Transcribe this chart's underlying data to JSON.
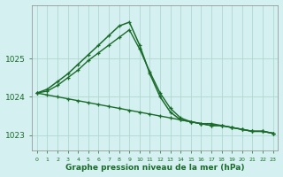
{
  "title": "Graphe pression niveau de la mer (hPa)",
  "background_color": "#d4f0f0",
  "grid_color": "#b0d8d0",
  "line_color": "#1a6b2a",
  "x_labels": [
    "0",
    "1",
    "2",
    "3",
    "4",
    "5",
    "6",
    "7",
    "8",
    "9",
    "10",
    "11",
    "12",
    "13",
    "14",
    "15",
    "16",
    "17",
    "18",
    "19",
    "20",
    "21",
    "22",
    "23"
  ],
  "ylim": [
    1022.6,
    1026.4
  ],
  "yticks": [
    1023,
    1024,
    1025
  ],
  "series": [
    [
      1024.1,
      1024.05,
      1024.0,
      1023.95,
      1023.9,
      1023.85,
      1023.8,
      1023.75,
      1023.7,
      1023.65,
      1023.6,
      1023.55,
      1023.5,
      1023.45,
      1023.4,
      1023.35,
      1023.3,
      1023.25,
      1023.25,
      1023.2,
      1023.15,
      1023.1,
      1023.1,
      1023.05
    ],
    [
      1024.1,
      1024.2,
      1024.4,
      1024.6,
      1024.85,
      1025.1,
      1025.35,
      1025.6,
      1025.85,
      1025.95,
      1025.35,
      1024.6,
      1024.0,
      1023.6,
      1023.4,
      1023.35,
      1023.3,
      1023.3,
      1023.25,
      1023.2,
      1023.15,
      1023.1,
      1023.1,
      1023.05
    ],
    [
      1024.1,
      1024.15,
      1024.3,
      1024.5,
      1024.7,
      1024.95,
      1025.15,
      1025.35,
      1025.55,
      1025.75,
      1025.25,
      1024.65,
      1024.1,
      1023.7,
      1023.45,
      1023.35,
      1023.3,
      1023.25,
      1023.25,
      1023.2,
      1023.15,
      1023.1,
      1023.1,
      1023.05
    ]
  ],
  "figsize": [
    3.2,
    2.0
  ],
  "dpi": 100
}
